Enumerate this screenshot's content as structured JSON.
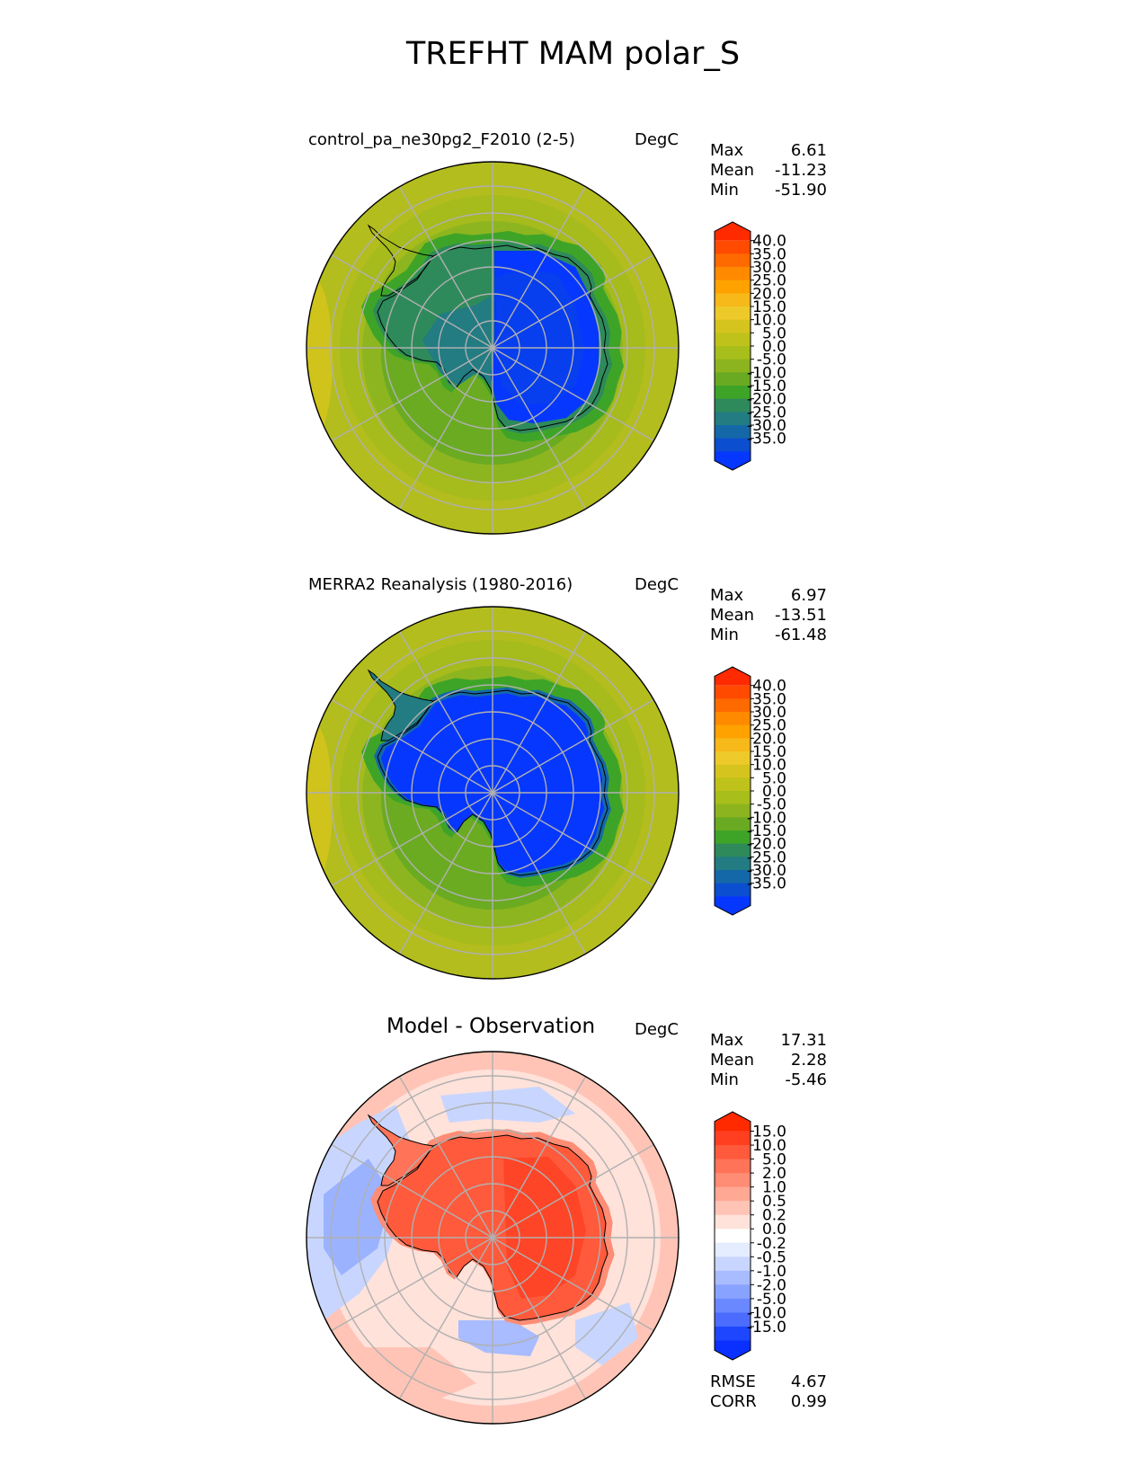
{
  "title": "TREFHT MAM polar_S",
  "panels": [
    {
      "id": "test",
      "title": "control_pa_ne30pg2_F2010 (2-5)",
      "units": "DegC",
      "stats": [
        {
          "label": "Max",
          "value": "6.61"
        },
        {
          "label": "Mean",
          "value": "-11.23"
        },
        {
          "label": "Min",
          "value": "-51.90"
        }
      ],
      "colorbar": {
        "labels": [
          "40.0",
          "35.0",
          "30.0",
          "25.0",
          "20.0",
          "15.0",
          "10.0",
          "5.0",
          "0.0",
          "-5.0",
          "-10.0",
          "-15.0",
          "-20.0",
          "-25.0",
          "-30.0",
          "-35.0"
        ],
        "colors": [
          "#ff2a00",
          "#ff4a00",
          "#ff6a00",
          "#ff8a00",
          "#ffa200",
          "#f7b81a",
          "#eec92a",
          "#d6c41e",
          "#bfc21a",
          "#a8be1a",
          "#8cb41e",
          "#6aaa22",
          "#3ea428",
          "#2e8a5a",
          "#227c82",
          "#1568a8",
          "#0b4ecf",
          "#0637ff"
        ]
      },
      "field": {
        "land": "cold-plateau"
      }
    },
    {
      "id": "ref",
      "title": "MERRA2 Reanalysis (1980-2016)",
      "units": "DegC",
      "stats": [
        {
          "label": "Max",
          "value": "6.97"
        },
        {
          "label": "Mean",
          "value": "-13.51"
        },
        {
          "label": "Min",
          "value": "-61.48"
        }
      ],
      "colorbar": {
        "labels": [
          "40.0",
          "35.0",
          "30.0",
          "25.0",
          "20.0",
          "15.0",
          "10.0",
          "5.0",
          "0.0",
          "-5.0",
          "-10.0",
          "-15.0",
          "-20.0",
          "-25.0",
          "-30.0",
          "-35.0"
        ],
        "colors": [
          "#ff2a00",
          "#ff4a00",
          "#ff6a00",
          "#ff8a00",
          "#ffa200",
          "#f7b81a",
          "#eec92a",
          "#d6c41e",
          "#bfc21a",
          "#a8be1a",
          "#8cb41e",
          "#6aaa22",
          "#3ea428",
          "#2e8a5a",
          "#227c82",
          "#1568a8",
          "#0b4ecf",
          "#0637ff"
        ]
      },
      "field": {
        "land": "colder-plateau"
      }
    },
    {
      "id": "diff",
      "title": "Model - Observation",
      "units": "DegC",
      "stats": [
        {
          "label": "Max",
          "value": "17.31"
        },
        {
          "label": "Mean",
          "value": "2.28"
        },
        {
          "label": "Min",
          "value": "-5.46"
        }
      ],
      "metrics": [
        {
          "label": "RMSE",
          "value": "4.67"
        },
        {
          "label": "CORR",
          "value": "0.99"
        }
      ],
      "colorbar": {
        "labels": [
          "15.0",
          "10.0",
          "5.0",
          "2.0",
          "1.0",
          "0.5",
          "0.2",
          "0.0",
          "-0.2",
          "-0.5",
          "-1.0",
          "-2.0",
          "-5.0",
          "-10.0",
          "-15.0"
        ],
        "colors": [
          "#ff2a00",
          "#ff3f20",
          "#ff5a3c",
          "#ff7358",
          "#ff8c74",
          "#ffa894",
          "#ffc4b6",
          "#ffe2da",
          "#ffffff",
          "#e4ecff",
          "#c8d6ff",
          "#a8bcff",
          "#88a2ff",
          "#6a88ff",
          "#4c6cff",
          "#1e46ff",
          "#0a30ff"
        ]
      },
      "field": {
        "land": "warm-anomaly"
      }
    }
  ]
}
